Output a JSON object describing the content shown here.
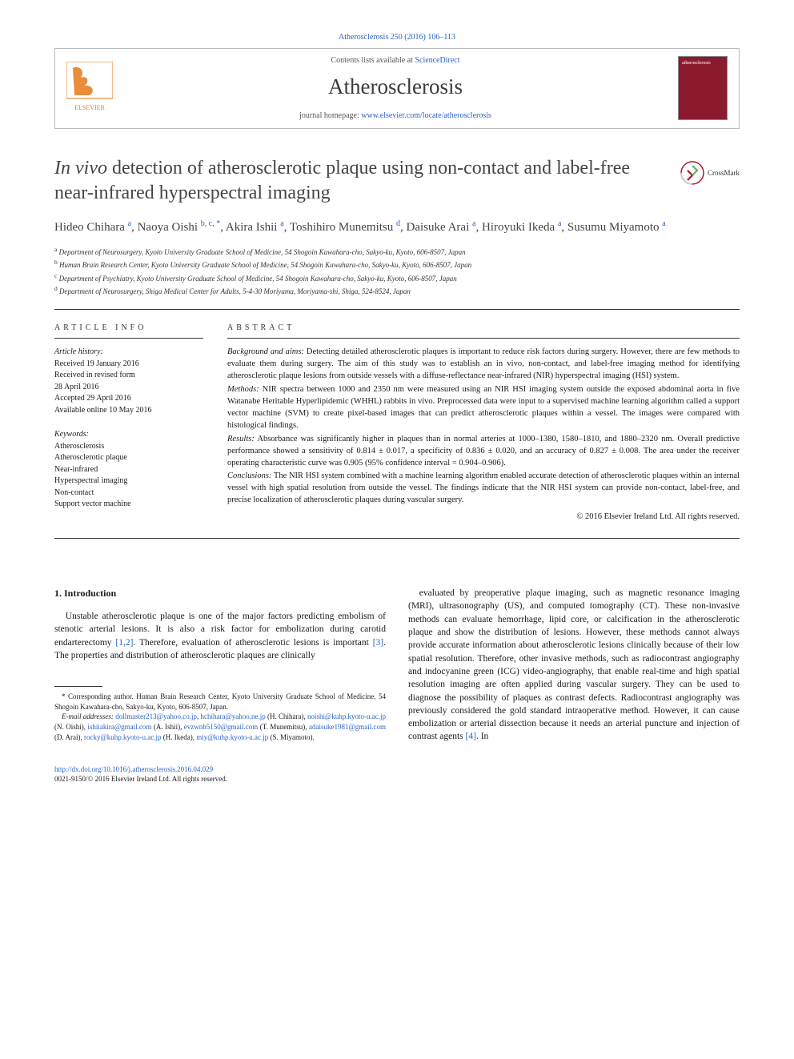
{
  "header": {
    "citation": "Atherosclerosis 250 (2016) 106–113",
    "contents_prefix": "Contents lists available at ",
    "contents_link": "ScienceDirect",
    "journal_name": "Atherosclerosis",
    "homepage_prefix": "journal homepage: ",
    "homepage_url": "www.elsevier.com/locate/atherosclerosis",
    "cover_label": "atherosclerosis"
  },
  "crossmark": {
    "label": "CrossMark"
  },
  "title": {
    "italic": "In vivo",
    "rest": " detection of atherosclerotic plaque using non-contact and label-free near-infrared hyperspectral imaging"
  },
  "authors_html": "Hideo Chihara <sup>a</sup>, Naoya Oishi <sup>b, c, *</sup>, Akira Ishii <sup>a</sup>, Toshihiro Munemitsu <sup>d</sup>, Daisuke Arai <sup>a</sup>, Hiroyuki Ikeda <sup>a</sup>, Susumu Miyamoto <sup>a</sup>",
  "affiliations": [
    {
      "sup": "a",
      "text": "Department of Neurosurgery, Kyoto University Graduate School of Medicine, 54 Shogoin Kawahara-cho, Sakyo-ku, Kyoto, 606-8507, Japan"
    },
    {
      "sup": "b",
      "text": "Human Brain Research Center, Kyoto University Graduate School of Medicine, 54 Shogoin Kawahara-cho, Sakyo-ku, Kyoto, 606-8507, Japan"
    },
    {
      "sup": "c",
      "text": "Department of Psychiatry, Kyoto University Graduate School of Medicine, 54 Shogoin Kawahara-cho, Sakyo-ku, Kyoto, 606-8507, Japan"
    },
    {
      "sup": "d",
      "text": "Department of Neurosurgery, Shiga Medical Center for Adults, 5-4-30 Moriyama, Moriyama-shi, Shiga, 524-8524, Japan"
    }
  ],
  "article_info": {
    "heading": "ARTICLE INFO",
    "history_label": "Article history:",
    "history": [
      "Received 19 January 2016",
      "Received in revised form",
      "28 April 2016",
      "Accepted 29 April 2016",
      "Available online 10 May 2016"
    ],
    "keywords_label": "Keywords:",
    "keywords": [
      "Atherosclerosis",
      "Atherosclerotic plaque",
      "Near-infrared",
      "Hyperspectral imaging",
      "Non-contact",
      "Support vector machine"
    ]
  },
  "abstract": {
    "heading": "ABSTRACT",
    "sections": [
      {
        "label": "Background and aims:",
        "text": " Detecting detailed atherosclerotic plaques is important to reduce risk factors during surgery. However, there are few methods to evaluate them during surgery. The aim of this study was to establish an in vivo, non-contact, and label-free imaging method for identifying atherosclerotic plaque lesions from outside vessels with a diffuse-reflectance near-infrared (NIR) hyperspectral imaging (HSI) system."
      },
      {
        "label": "Methods:",
        "text": " NIR spectra between 1000 and 2350 nm were measured using an NIR HSI imaging system outside the exposed abdominal aorta in five Watanabe Heritable Hyperlipidemic (WHHL) rabbits in vivo. Preprocessed data were input to a supervised machine learning algorithm called a support vector machine (SVM) to create pixel-based images that can predict atherosclerotic plaques within a vessel. The images were compared with histological findings."
      },
      {
        "label": "Results:",
        "text": " Absorbance was significantly higher in plaques than in normal arteries at 1000–1380, 1580–1810, and 1880–2320 nm. Overall predictive performance showed a sensitivity of 0.814 ± 0.017, a specificity of 0.836 ± 0.020, and an accuracy of 0.827 ± 0.008. The area under the receiver operating characteristic curve was 0.905 (95% confidence interval = 0.904–0.906)."
      },
      {
        "label": "Conclusions:",
        "text": " The NIR HSI system combined with a machine learning algorithm enabled accurate detection of atherosclerotic plaques within an internal vessel with high spatial resolution from outside the vessel. The findings indicate that the NIR HSI system can provide non-contact, label-free, and precise localization of atherosclerotic plaques during vascular surgery."
      }
    ],
    "copyright": "© 2016 Elsevier Ireland Ltd. All rights reserved."
  },
  "body": {
    "intro_heading": "1. Introduction",
    "col1_p1": "Unstable atherosclerotic plaque is one of the major factors predicting embolism of stenotic arterial lesions. It is also a risk factor for embolization during carotid endarterectomy [1,2]. Therefore, evaluation of atherosclerotic lesions is important [3]. The properties and distribution of atherosclerotic plaques are clinically",
    "col2_p1": "evaluated by preoperative plaque imaging, such as magnetic resonance imaging (MRI), ultrasonography (US), and computed tomography (CT). These non-invasive methods can evaluate hemorrhage, lipid core, or calcification in the atherosclerotic plaque and show the distribution of lesions. However, these methods cannot always provide accurate information about atherosclerotic lesions clinically because of their low spatial resolution. Therefore, other invasive methods, such as radiocontrast angiography and indocyanine green (ICG) video-angiography, that enable real-time and high spatial resolution imaging are often applied during vascular surgery. They can be used to diagnose the possibility of plaques as contrast defects. Radiocontrast angiography was previously considered the gold standard intraoperative method. However, it can cause embolization or arterial dissection because it needs an arterial puncture and injection of contrast agents [4]. In",
    "refs": {
      "r12": "[1,2]",
      "r3": "[3]",
      "r4": "[4]"
    }
  },
  "footnotes": {
    "corr": "* Corresponding author. Human Brain Research Center, Kyoto University Graduate School of Medicine, 54 Shogoin Kawahara-cho, Sakyo-ku, Kyoto, 606-8507, Japan.",
    "emails_label": "E-mail addresses:",
    "emails": [
      {
        "addr": "dollmaster213@yahoo.co.jp",
        "who": ""
      },
      {
        "addr": "hchihara@yahoo.ne.jp",
        "who": "(H. Chihara)"
      },
      {
        "addr": "noishi@kuhp.kyoto-u.ac.jp",
        "who": "(N. Oishi)"
      },
      {
        "addr": "ishiiakira@gmail.com",
        "who": "(A. Ishii)"
      },
      {
        "addr": "evzwnb5150@gmail.com",
        "who": "(T. Munemitsu)"
      },
      {
        "addr": "adaisuke1981@gmail.com",
        "who": "(D. Arai)"
      },
      {
        "addr": "rocky@kuhp.kyoto-u.ac.jp",
        "who": "(H. Ikeda)"
      },
      {
        "addr": "miy@kuhp.kyoto-u.ac.jp",
        "who": "(S. Miyamoto)"
      }
    ]
  },
  "doi": {
    "url": "http://dx.doi.org/10.1016/j.atherosclerosis.2016.04.029",
    "issn_line": "0021-9150/© 2016 Elsevier Ireland Ltd. All rights reserved."
  },
  "colors": {
    "link": "#2962c4",
    "cover_bg": "#8b1a2e",
    "text": "#1a1a1a",
    "heading": "#444444",
    "border": "#333333"
  }
}
